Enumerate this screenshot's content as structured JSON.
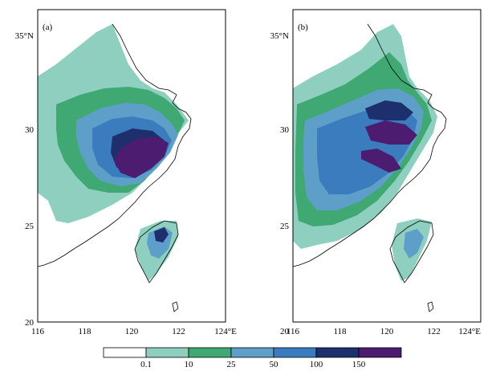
{
  "panels": [
    {
      "label": "(a)"
    },
    {
      "label": "(b)"
    }
  ],
  "x_ticks": [
    "116",
    "118",
    "120",
    "122",
    "124°E"
  ],
  "y_ticks": [
    "35°N",
    "30",
    "25",
    "20"
  ],
  "colorbar": {
    "boundaries": [
      "0.1",
      "10",
      "25",
      "50",
      "100",
      "150"
    ],
    "colors": [
      "#ffffff",
      "#8fcfbf",
      "#3fa873",
      "#5e9fc9",
      "#3a7cbd",
      "#1e2f6e",
      "#4b1c70"
    ]
  },
  "map_colors": {
    "coast": "#000000",
    "frame": "#000000"
  }
}
